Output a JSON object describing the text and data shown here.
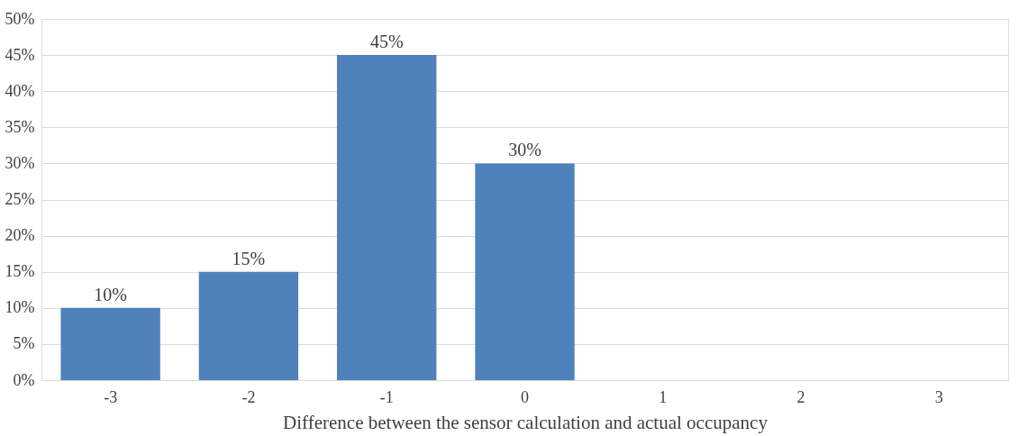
{
  "chart_data": {
    "type": "bar",
    "xlabel": "Difference between the sensor calculation and actual occupancy",
    "categories": [
      "-3",
      "-2",
      "-1",
      "0",
      "1",
      "2",
      "3"
    ],
    "values": [
      10,
      15,
      45,
      30,
      0,
      0,
      0
    ],
    "value_labels": [
      "10%",
      "15%",
      "45%",
      "30%",
      null,
      null,
      null
    ],
    "color": "#4f81bd",
    "ylim": [
      0,
      50
    ],
    "yticks": [
      {
        "value": 0,
        "label": "0%"
      },
      {
        "value": 5,
        "label": "5%"
      },
      {
        "value": 10,
        "label": "10%"
      },
      {
        "value": 15,
        "label": "15%"
      },
      {
        "value": 20,
        "label": "20%"
      },
      {
        "value": 25,
        "label": "25%"
      },
      {
        "value": 30,
        "label": "30%"
      },
      {
        "value": 35,
        "label": "35%"
      },
      {
        "value": 40,
        "label": "40%"
      },
      {
        "value": 45,
        "label": "45%"
      },
      {
        "value": 50,
        "label": "50%"
      }
    ],
    "grid": "y"
  }
}
